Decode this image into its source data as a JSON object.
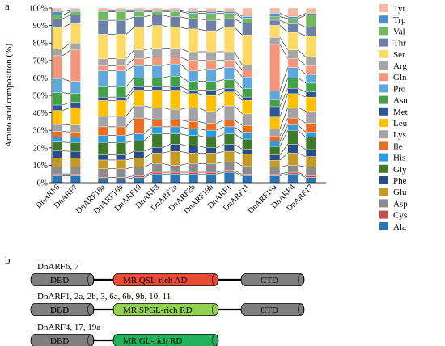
{
  "panel_a_label": "a",
  "panel_b_label": "b",
  "chart_data": {
    "type": "bar",
    "stacked": true,
    "percent": true,
    "ylabel": "Amino acid composition (%)",
    "ylim": [
      0,
      100
    ],
    "yticks": [
      "0%",
      "10%",
      "20%",
      "30%",
      "40%",
      "50%",
      "60%",
      "70%",
      "80%",
      "90%",
      "100%"
    ],
    "grid": false,
    "legend_position": "right",
    "categories": [
      "DnARF6",
      "DnARF7",
      "DnARF16a",
      "DnARF16b",
      "DnARF10",
      "DnARF3",
      "DnARF2a",
      "DnARF2b",
      "DnARF19b",
      "DnARF1",
      "DnARF11",
      "DnARF19a",
      "DnARF4",
      "DnARF17"
    ],
    "category_groups": [
      [
        0,
        1
      ],
      [
        2,
        3,
        4,
        5,
        6,
        7,
        8,
        9,
        10
      ],
      [
        11,
        12,
        13
      ]
    ],
    "series": [
      {
        "name": "Ala",
        "color": "#2e75b6",
        "values": [
          4,
          4,
          2,
          2,
          3,
          5,
          5,
          5,
          5,
          6,
          4,
          4,
          5,
          3
        ]
      },
      {
        "name": "Cys",
        "color": "#c5504b",
        "values": [
          1,
          1,
          1,
          1,
          1,
          1,
          1,
          1,
          1,
          1,
          1,
          1,
          1,
          1
        ]
      },
      {
        "name": "Asp",
        "color": "#8c8c8c",
        "values": [
          4,
          4,
          5,
          5,
          5,
          5,
          4,
          5,
          5,
          5,
          5,
          4,
          4,
          5
        ]
      },
      {
        "name": "Glu",
        "color": "#c49a22",
        "values": [
          5,
          5,
          5,
          5,
          5,
          6,
          8,
          6,
          6,
          6,
          7,
          4,
          7,
          6
        ]
      },
      {
        "name": "Phe",
        "color": "#2a4c8a",
        "values": [
          4,
          4,
          3,
          3,
          4,
          3,
          4,
          4,
          3,
          4,
          3,
          3,
          5,
          4
        ]
      },
      {
        "name": "Gly",
        "color": "#3f7a2a",
        "values": [
          5,
          5,
          7,
          7,
          6,
          8,
          6,
          6,
          6,
          6,
          6,
          5,
          8,
          7
        ]
      },
      {
        "name": "His",
        "color": "#2e9be0",
        "values": [
          3,
          3,
          4,
          4,
          4,
          4,
          4,
          4,
          4,
          4,
          4,
          3,
          3,
          3
        ]
      },
      {
        "name": "Ile",
        "color": "#eb6d1f",
        "values": [
          3,
          3,
          5,
          5,
          9,
          4,
          4,
          4,
          4,
          4,
          4,
          3,
          4,
          5
        ]
      },
      {
        "name": "Lys",
        "color": "#a3a3a3",
        "values": [
          4,
          4,
          6,
          6,
          7,
          7,
          6,
          8,
          7,
          8,
          7,
          4,
          6,
          7
        ]
      },
      {
        "name": "Leu",
        "color": "#ffc000",
        "values": [
          8,
          10,
          9,
          9,
          9,
          10,
          11,
          8,
          9,
          8,
          8,
          7,
          8,
          8
        ]
      },
      {
        "name": "Met",
        "color": "#2f5597",
        "values": [
          3,
          3,
          2,
          2,
          2,
          2,
          2,
          2,
          3,
          2,
          2,
          6,
          3,
          3
        ]
      },
      {
        "name": "Asn",
        "color": "#43a047",
        "values": [
          7,
          5,
          6,
          6,
          5,
          5,
          6,
          5,
          5,
          5,
          5,
          4,
          6,
          5
        ]
      },
      {
        "name": "Pro",
        "color": "#5fa8dc",
        "values": [
          8,
          7,
          9,
          9,
          7,
          7,
          7,
          6,
          7,
          7,
          7,
          5,
          6,
          5
        ]
      },
      {
        "name": "Gln",
        "color": "#f4967a",
        "values": [
          13,
          18,
          3,
          3,
          4,
          5,
          4,
          6,
          5,
          4,
          4,
          27,
          5,
          5
        ]
      },
      {
        "name": "Arg",
        "color": "#a6a6a6",
        "values": [
          4,
          4,
          4,
          4,
          5,
          5,
          5,
          5,
          5,
          5,
          3,
          4,
          5,
          5
        ]
      },
      {
        "name": "Ser",
        "color": "#ffd966",
        "values": [
          12,
          11,
          14,
          14,
          13,
          13,
          12,
          13,
          12,
          14,
          18,
          7,
          10,
          12
        ]
      },
      {
        "name": "Thr",
        "color": "#6e7fa8",
        "values": [
          5,
          5,
          8,
          8,
          6,
          6,
          6,
          6,
          6,
          5,
          7,
          3,
          5,
          5
        ]
      },
      {
        "name": "Val",
        "color": "#73b85d",
        "values": [
          2,
          2,
          5,
          5,
          3,
          2,
          3,
          3,
          4,
          3,
          3,
          2,
          3,
          7
        ]
      },
      {
        "name": "Trp",
        "color": "#4f8fc9",
        "values": [
          2,
          1,
          1,
          1,
          1,
          1,
          1,
          1,
          1,
          1,
          1,
          2,
          1,
          1
        ]
      },
      {
        "name": "Tyr",
        "color": "#f7b8a3",
        "values": [
          2,
          1,
          1,
          1,
          1,
          1,
          1,
          2,
          2,
          2,
          5,
          3,
          5,
          3
        ]
      }
    ],
    "legend_order": [
      "Tyr",
      "Trp",
      "Val",
      "Thr",
      "Ser",
      "Arg",
      "Gln",
      "Pro",
      "Asn",
      "Met",
      "Leu",
      "Lys",
      "Ile",
      "His",
      "Gly",
      "Phe",
      "Glu",
      "Asp",
      "Cys",
      "Ala"
    ]
  },
  "diagram": {
    "rows": [
      {
        "caption": "DnARF6, 7",
        "domains": [
          {
            "label": "DBD",
            "color": "#7f7f7f"
          },
          {
            "label": "MR QSL-rich AD",
            "color": "#e84a32"
          },
          {
            "label": "CTD",
            "color": "#7f7f7f"
          }
        ]
      },
      {
        "caption": "DnARF1, 2a, 2b, 3, 6a, 6b, 9b, 10, 11",
        "domains": [
          {
            "label": "DBD",
            "color": "#7f7f7f"
          },
          {
            "label": "MR SPGL-rich RD",
            "color": "#92d050"
          },
          {
            "label": "CTD",
            "color": "#7f7f7f"
          }
        ]
      },
      {
        "caption": "DnARF4, 17, 19a",
        "domains": [
          {
            "label": "DBD",
            "color": "#7f7f7f"
          },
          {
            "label": "MR GL-rich RD",
            "color": "#1fb25a"
          }
        ]
      }
    ]
  }
}
